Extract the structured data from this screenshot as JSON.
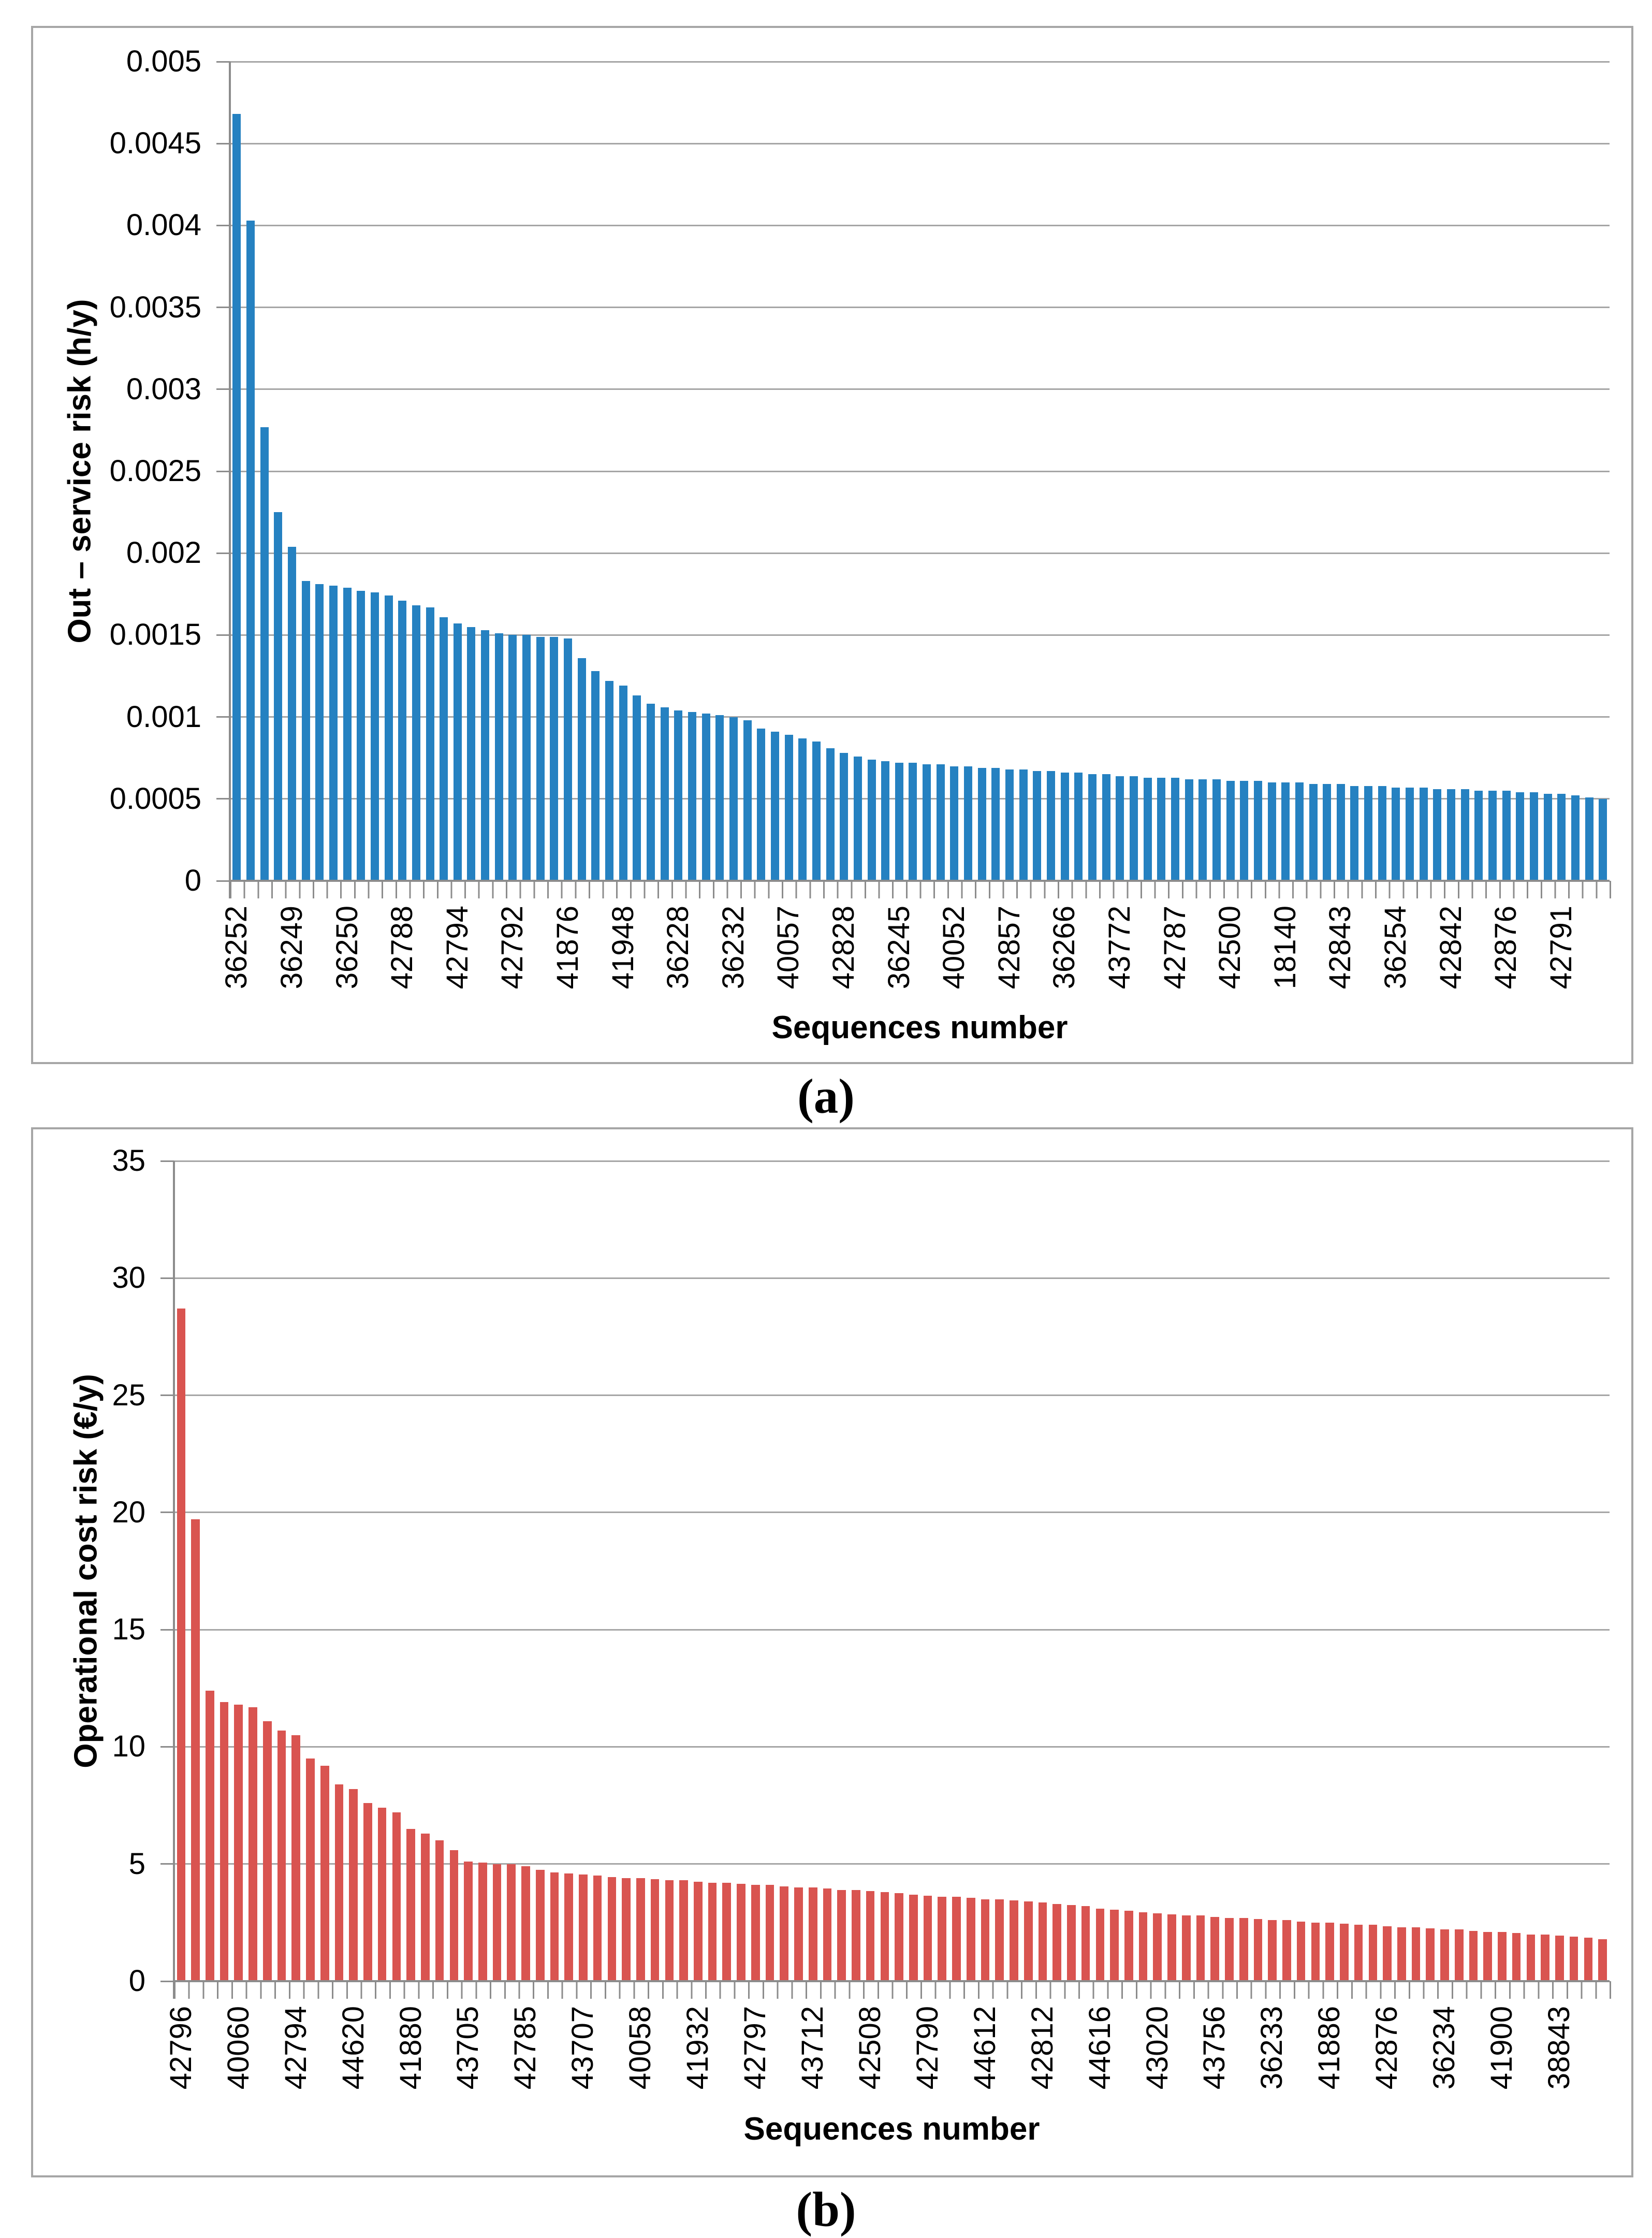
{
  "figure": {
    "caption_a": "(a)",
    "caption_b": "(b)",
    "background": "#ffffff",
    "frame_color": "#a6a6a6",
    "gridline_color": "#a6a6a6",
    "axis_color": "#8c8c8c"
  },
  "chart_data": [
    {
      "type": "bar",
      "panel": "a",
      "caption": "(a)",
      "title": "",
      "xlabel": "Sequences number",
      "ylabel": "Out – service risk (h/y)",
      "bar_color": "#2581c1",
      "ylim": [
        0,
        0.005
      ],
      "y_tick_step": 0.0005,
      "y_tick_labels": [
        "0",
        "0.0005",
        "0.001",
        "0.0015",
        "0.002",
        "0.0025",
        "0.003",
        "0.0035",
        "0.004",
        "0.0045",
        "0.005"
      ],
      "grid": "horizontal",
      "legend": "none",
      "x_label_interval": 4,
      "categories": [
        "36252",
        "36249",
        "36250",
        "42788",
        "42794",
        "42792",
        "41876",
        "41948",
        "36228",
        "36232",
        "40057",
        "42828",
        "36245",
        "40052",
        "42857",
        "36266",
        "43772",
        "42787",
        "42500",
        "18140",
        "42843",
        "36254",
        "42842",
        "42876",
        "42791"
      ],
      "values": [
        0.00468,
        0.00403,
        0.00277,
        0.00225,
        0.00204,
        0.00183,
        0.00181,
        0.0018,
        0.00179,
        0.00177,
        0.00176,
        0.00174,
        0.00171,
        0.00168,
        0.00167,
        0.00161,
        0.00157,
        0.00155,
        0.00153,
        0.00151,
        0.0015,
        0.0015,
        0.00149,
        0.00149,
        0.00148,
        0.00136,
        0.00128,
        0.00122,
        0.00119,
        0.00113,
        0.00108,
        0.00106,
        0.00104,
        0.00103,
        0.00102,
        0.00101,
        0.001,
        0.00098,
        0.00093,
        0.00091,
        0.00089,
        0.00087,
        0.00085,
        0.00081,
        0.00078,
        0.00076,
        0.00074,
        0.00073,
        0.00072,
        0.00072,
        0.00071,
        0.00071,
        0.0007,
        0.0007,
        0.00069,
        0.00069,
        0.00068,
        0.00068,
        0.00067,
        0.00067,
        0.00066,
        0.00066,
        0.00065,
        0.00065,
        0.00064,
        0.00064,
        0.00063,
        0.00063,
        0.00063,
        0.00062,
        0.00062,
        0.00062,
        0.00061,
        0.00061,
        0.00061,
        0.0006,
        0.0006,
        0.0006,
        0.00059,
        0.00059,
        0.00059,
        0.00058,
        0.00058,
        0.00058,
        0.00057,
        0.00057,
        0.00057,
        0.00056,
        0.00056,
        0.00056,
        0.00055,
        0.00055,
        0.00055,
        0.00054,
        0.00054,
        0.00053,
        0.00053,
        0.00052,
        0.00051,
        0.0005
      ]
    },
    {
      "type": "bar",
      "panel": "b",
      "caption": "(b)",
      "title": "",
      "xlabel": "Sequences number",
      "ylabel": "Operational cost risk (€/y)",
      "bar_color": "#d95450",
      "ylim": [
        0,
        35
      ],
      "y_tick_step": 5,
      "y_tick_labels": [
        "0",
        "5",
        "10",
        "15",
        "20",
        "25",
        "30",
        "35"
      ],
      "grid": "horizontal",
      "legend": "none",
      "x_label_interval": 4,
      "categories": [
        "42796",
        "40060",
        "42794",
        "44620",
        "41880",
        "43705",
        "42785",
        "43707",
        "40058",
        "41932",
        "42797",
        "43712",
        "42508",
        "42790",
        "44612",
        "42812",
        "44616",
        "43020",
        "43756",
        "36233",
        "41886",
        "42876",
        "36234",
        "41900",
        "38843"
      ],
      "values": [
        28.7,
        19.7,
        12.4,
        11.9,
        11.8,
        11.7,
        11.1,
        10.7,
        10.5,
        9.5,
        9.2,
        8.4,
        8.2,
        7.6,
        7.4,
        7.2,
        6.5,
        6.3,
        6.0,
        5.6,
        5.1,
        5.05,
        5.0,
        5.0,
        4.9,
        4.75,
        4.65,
        4.6,
        4.55,
        4.5,
        4.45,
        4.4,
        4.4,
        4.35,
        4.3,
        4.3,
        4.25,
        4.2,
        4.2,
        4.15,
        4.1,
        4.1,
        4.05,
        4.0,
        4.0,
        3.95,
        3.9,
        3.9,
        3.85,
        3.8,
        3.75,
        3.7,
        3.65,
        3.6,
        3.6,
        3.55,
        3.5,
        3.5,
        3.45,
        3.4,
        3.35,
        3.3,
        3.25,
        3.2,
        3.1,
        3.05,
        3.0,
        2.95,
        2.9,
        2.85,
        2.8,
        2.8,
        2.75,
        2.7,
        2.7,
        2.65,
        2.6,
        2.6,
        2.55,
        2.5,
        2.5,
        2.45,
        2.4,
        2.4,
        2.35,
        2.3,
        2.3,
        2.25,
        2.2,
        2.2,
        2.15,
        2.1,
        2.1,
        2.05,
        2.0,
        2.0,
        1.95,
        1.9,
        1.85,
        1.8
      ]
    }
  ]
}
